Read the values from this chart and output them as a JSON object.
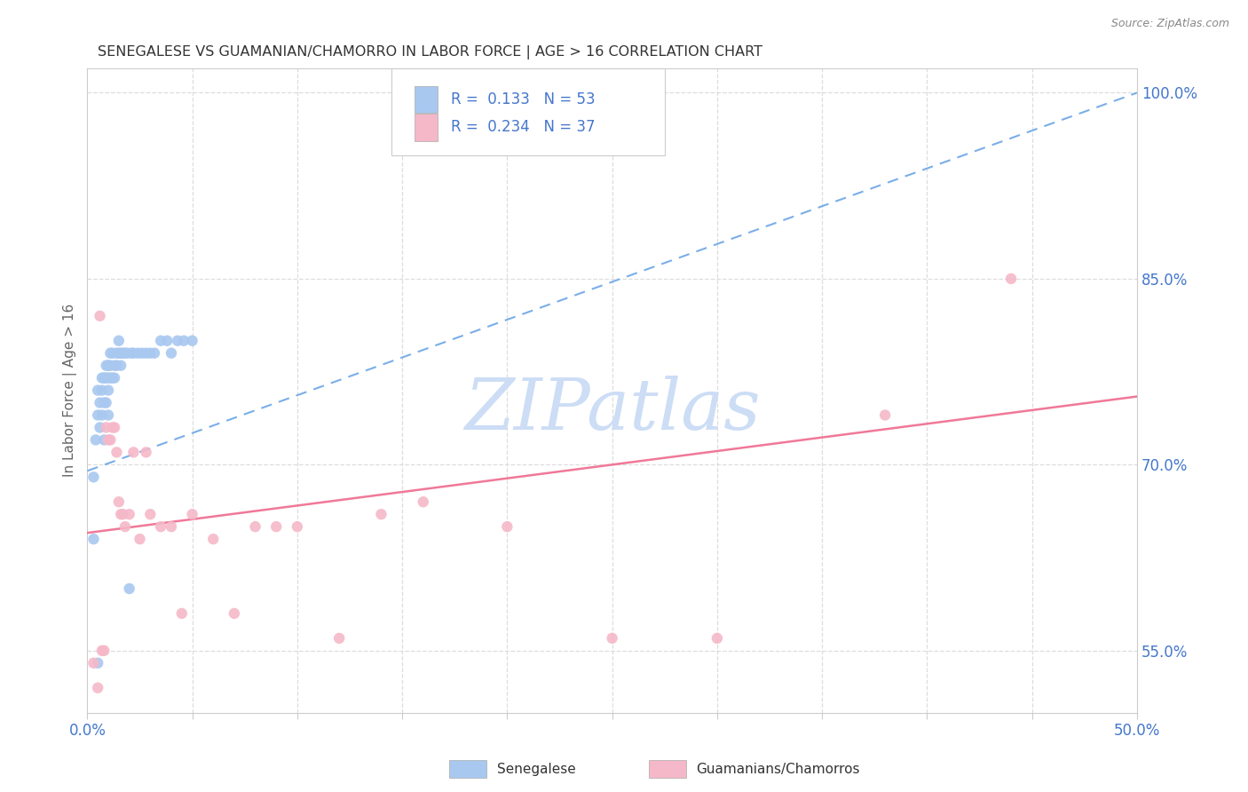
{
  "title": "SENEGALESE VS GUAMANIAN/CHAMORRO IN LABOR FORCE | AGE > 16 CORRELATION CHART",
  "source": "Source: ZipAtlas.com",
  "ylabel": "In Labor Force | Age > 16",
  "xlim": [
    0.0,
    0.5
  ],
  "ylim": [
    0.5,
    1.02
  ],
  "xticks": [
    0.0,
    0.05,
    0.1,
    0.15,
    0.2,
    0.25,
    0.3,
    0.35,
    0.4,
    0.45,
    0.5
  ],
  "yticks_right": [
    0.55,
    0.7,
    0.85,
    1.0
  ],
  "ytick_labels_right": [
    "55.0%",
    "70.0%",
    "85.0%",
    "100.0%"
  ],
  "series1_label": "Senegalese",
  "series1_R": "0.133",
  "series1_N": "53",
  "series1_color": "#a8c8f0",
  "series1_trend_color": "#7aaee8",
  "series2_label": "Guamanians/Chamorros",
  "series2_R": "0.234",
  "series2_N": "37",
  "series2_color": "#f5b8c8",
  "series2_trend_color": "#f07898",
  "watermark": "ZIPatlas",
  "watermark_color": "#ccddf5",
  "background_color": "#ffffff",
  "grid_color": "#dddddd",
  "title_color": "#333333",
  "axis_label_color": "#4477cc",
  "legend_text_color": "#4477cc",
  "senegalese_x": [
    0.003,
    0.003,
    0.004,
    0.005,
    0.005,
    0.005,
    0.006,
    0.006,
    0.007,
    0.007,
    0.007,
    0.008,
    0.008,
    0.008,
    0.008,
    0.009,
    0.009,
    0.009,
    0.01,
    0.01,
    0.01,
    0.01,
    0.01,
    0.011,
    0.011,
    0.011,
    0.012,
    0.012,
    0.013,
    0.013,
    0.014,
    0.014,
    0.015,
    0.015,
    0.016,
    0.016,
    0.017,
    0.018,
    0.019,
    0.02,
    0.021,
    0.022,
    0.024,
    0.026,
    0.028,
    0.03,
    0.032,
    0.035,
    0.038,
    0.04,
    0.043,
    0.046,
    0.05
  ],
  "senegalese_y": [
    0.69,
    0.64,
    0.72,
    0.76,
    0.74,
    0.54,
    0.75,
    0.73,
    0.77,
    0.76,
    0.74,
    0.77,
    0.77,
    0.75,
    0.72,
    0.78,
    0.77,
    0.75,
    0.78,
    0.78,
    0.77,
    0.76,
    0.74,
    0.79,
    0.78,
    0.77,
    0.79,
    0.77,
    0.78,
    0.77,
    0.79,
    0.78,
    0.8,
    0.79,
    0.79,
    0.78,
    0.79,
    0.79,
    0.79,
    0.6,
    0.79,
    0.79,
    0.79,
    0.79,
    0.79,
    0.79,
    0.79,
    0.8,
    0.8,
    0.79,
    0.8,
    0.8,
    0.8
  ],
  "guamanian_x": [
    0.003,
    0.005,
    0.006,
    0.007,
    0.008,
    0.009,
    0.01,
    0.011,
    0.012,
    0.013,
    0.014,
    0.015,
    0.016,
    0.017,
    0.018,
    0.02,
    0.022,
    0.025,
    0.028,
    0.03,
    0.035,
    0.04,
    0.045,
    0.05,
    0.06,
    0.07,
    0.08,
    0.09,
    0.1,
    0.12,
    0.14,
    0.16,
    0.2,
    0.25,
    0.3,
    0.38,
    0.44
  ],
  "guamanian_y": [
    0.54,
    0.52,
    0.82,
    0.55,
    0.55,
    0.73,
    0.72,
    0.72,
    0.73,
    0.73,
    0.71,
    0.67,
    0.66,
    0.66,
    0.65,
    0.66,
    0.71,
    0.64,
    0.71,
    0.66,
    0.65,
    0.65,
    0.58,
    0.66,
    0.64,
    0.58,
    0.65,
    0.65,
    0.65,
    0.56,
    0.66,
    0.67,
    0.65,
    0.56,
    0.56,
    0.74,
    0.85
  ],
  "trend1_x0": 0.0,
  "trend1_y0": 0.695,
  "trend1_x1": 0.5,
  "trend1_y1": 1.0,
  "trend2_x0": 0.0,
  "trend2_y0": 0.645,
  "trend2_x1": 0.5,
  "trend2_y1": 0.755
}
